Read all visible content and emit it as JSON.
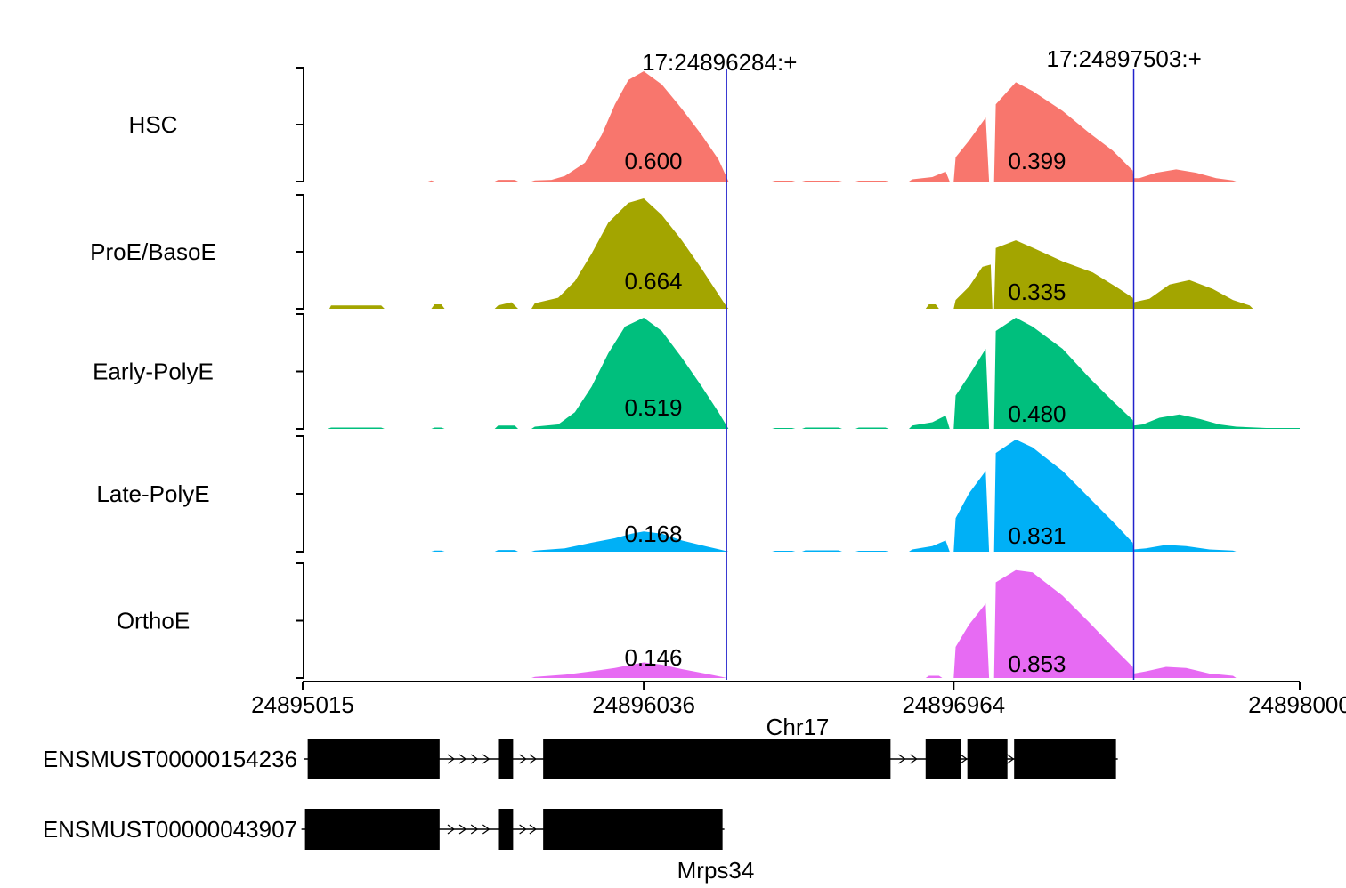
{
  "chart_data": {
    "type": "area",
    "chromosome_label": "Chr17",
    "x_range": [
      24895015,
      24898000
    ],
    "x_ticks": [
      "24895015",
      "24896036",
      "24896964",
      "24898000"
    ],
    "sites": [
      {
        "label": "17:24896284:+",
        "pos": 24896284
      },
      {
        "label": "17:24897503:+",
        "pos": 24897503
      }
    ],
    "series": [
      {
        "name": "HSC",
        "color": "#F8766D",
        "psi": [
          "0.600",
          "0.399"
        ],
        "profile": [
          [
            24895015,
            0
          ],
          [
            24895390,
            0
          ],
          [
            24895400,
            0.01
          ],
          [
            24895410,
            0
          ],
          [
            24895590,
            0
          ],
          [
            24895600,
            0.015
          ],
          [
            24895650,
            0.015
          ],
          [
            24895660,
            0
          ],
          [
            24895700,
            0
          ],
          [
            24895710,
            0.01
          ],
          [
            24895760,
            0.015
          ],
          [
            24895800,
            0.05
          ],
          [
            24895860,
            0.17
          ],
          [
            24895910,
            0.42
          ],
          [
            24895950,
            0.7
          ],
          [
            24895990,
            0.92
          ],
          [
            24896036,
            1.0
          ],
          [
            24896090,
            0.88
          ],
          [
            24896150,
            0.66
          ],
          [
            24896210,
            0.42
          ],
          [
            24896260,
            0.2
          ],
          [
            24896284,
            0.04
          ],
          [
            24896290,
            0
          ],
          [
            24896420,
            0
          ],
          [
            24896430,
            0.008
          ],
          [
            24896480,
            0.008
          ],
          [
            24896490,
            0
          ],
          [
            24896510,
            0
          ],
          [
            24896520,
            0.008
          ],
          [
            24896620,
            0.008
          ],
          [
            24896630,
            0
          ],
          [
            24896670,
            0
          ],
          [
            24896680,
            0.008
          ],
          [
            24896760,
            0.008
          ],
          [
            24896770,
            0
          ],
          [
            24896830,
            0
          ],
          [
            24896840,
            0.02
          ],
          [
            24896900,
            0.04
          ],
          [
            24896940,
            0.09
          ],
          [
            24896952,
            0
          ],
          [
            24896964,
            0
          ],
          [
            24896970,
            0.22
          ],
          [
            24897010,
            0.37
          ],
          [
            24897060,
            0.58
          ],
          [
            24897070,
            0
          ],
          [
            24897085,
            0
          ],
          [
            24897090,
            0.7
          ],
          [
            24897150,
            0.9
          ],
          [
            24897200,
            0.82
          ],
          [
            24897290,
            0.64
          ],
          [
            24897370,
            0.44
          ],
          [
            24897440,
            0.28
          ],
          [
            24897500,
            0.1
          ],
          [
            24897503,
            0.03
          ],
          [
            24897520,
            0.03
          ],
          [
            24897570,
            0.08
          ],
          [
            24897630,
            0.11
          ],
          [
            24897690,
            0.08
          ],
          [
            24897750,
            0.03
          ],
          [
            24897800,
            0.01
          ],
          [
            24897810,
            0
          ],
          [
            24898000,
            0
          ]
        ]
      },
      {
        "name": "ProE/BasoE",
        "color": "#A3A500",
        "psi": [
          "0.664",
          "0.335"
        ],
        "profile": [
          [
            24895015,
            0
          ],
          [
            24895095,
            0
          ],
          [
            24895100,
            0.03
          ],
          [
            24895250,
            0.03
          ],
          [
            24895260,
            0
          ],
          [
            24895400,
            0
          ],
          [
            24895410,
            0.04
          ],
          [
            24895430,
            0.04
          ],
          [
            24895440,
            0
          ],
          [
            24895590,
            0
          ],
          [
            24895600,
            0.03
          ],
          [
            24895640,
            0.06
          ],
          [
            24895660,
            0
          ],
          [
            24895700,
            0
          ],
          [
            24895710,
            0.05
          ],
          [
            24895780,
            0.1
          ],
          [
            24895830,
            0.25
          ],
          [
            24895880,
            0.5
          ],
          [
            24895930,
            0.78
          ],
          [
            24895990,
            0.96
          ],
          [
            24896036,
            1.0
          ],
          [
            24896090,
            0.85
          ],
          [
            24896150,
            0.62
          ],
          [
            24896210,
            0.36
          ],
          [
            24896260,
            0.13
          ],
          [
            24896284,
            0.02
          ],
          [
            24896290,
            0
          ],
          [
            24896880,
            0
          ],
          [
            24896890,
            0.04
          ],
          [
            24896910,
            0.04
          ],
          [
            24896920,
            0
          ],
          [
            24896964,
            0
          ],
          [
            24896970,
            0.08
          ],
          [
            24897010,
            0.2
          ],
          [
            24897050,
            0.38
          ],
          [
            24897075,
            0.4
          ],
          [
            24897080,
            0
          ],
          [
            24897085,
            0
          ],
          [
            24897090,
            0.55
          ],
          [
            24897150,
            0.62
          ],
          [
            24897210,
            0.54
          ],
          [
            24897290,
            0.43
          ],
          [
            24897380,
            0.33
          ],
          [
            24897450,
            0.2
          ],
          [
            24897500,
            0.1
          ],
          [
            24897503,
            0.06
          ],
          [
            24897550,
            0.09
          ],
          [
            24897610,
            0.22
          ],
          [
            24897670,
            0.26
          ],
          [
            24897740,
            0.18
          ],
          [
            24897800,
            0.08
          ],
          [
            24897850,
            0.03
          ],
          [
            24897860,
            0
          ],
          [
            24898000,
            0
          ]
        ]
      },
      {
        "name": "Early-PolyE",
        "color": "#00BF7D",
        "psi": [
          "0.519",
          "0.480"
        ],
        "profile": [
          [
            24895015,
            0
          ],
          [
            24895090,
            0
          ],
          [
            24895100,
            0.012
          ],
          [
            24895250,
            0.012
          ],
          [
            24895260,
            0
          ],
          [
            24895400,
            0
          ],
          [
            24895410,
            0.012
          ],
          [
            24895430,
            0.012
          ],
          [
            24895440,
            0
          ],
          [
            24895590,
            0
          ],
          [
            24895600,
            0.03
          ],
          [
            24895650,
            0.03
          ],
          [
            24895660,
            0
          ],
          [
            24895700,
            0
          ],
          [
            24895710,
            0.02
          ],
          [
            24895780,
            0.04
          ],
          [
            24895830,
            0.15
          ],
          [
            24895880,
            0.38
          ],
          [
            24895930,
            0.68
          ],
          [
            24895980,
            0.92
          ],
          [
            24896036,
            1.0
          ],
          [
            24896090,
            0.88
          ],
          [
            24896150,
            0.64
          ],
          [
            24896210,
            0.38
          ],
          [
            24896260,
            0.15
          ],
          [
            24896284,
            0.03
          ],
          [
            24896290,
            0
          ],
          [
            24896420,
            0
          ],
          [
            24896430,
            0.008
          ],
          [
            24896480,
            0.008
          ],
          [
            24896490,
            0
          ],
          [
            24896510,
            0
          ],
          [
            24896520,
            0.012
          ],
          [
            24896620,
            0.012
          ],
          [
            24896630,
            0
          ],
          [
            24896670,
            0
          ],
          [
            24896680,
            0.012
          ],
          [
            24896760,
            0.012
          ],
          [
            24896770,
            0
          ],
          [
            24896830,
            0
          ],
          [
            24896840,
            0.03
          ],
          [
            24896900,
            0.06
          ],
          [
            24896940,
            0.12
          ],
          [
            24896952,
            0
          ],
          [
            24896964,
            0
          ],
          [
            24896970,
            0.3
          ],
          [
            24897010,
            0.48
          ],
          [
            24897060,
            0.72
          ],
          [
            24897070,
            0
          ],
          [
            24897085,
            0
          ],
          [
            24897090,
            0.88
          ],
          [
            24897150,
            1.0
          ],
          [
            24897200,
            0.92
          ],
          [
            24897290,
            0.72
          ],
          [
            24897370,
            0.46
          ],
          [
            24897440,
            0.25
          ],
          [
            24897500,
            0.08
          ],
          [
            24897503,
            0.03
          ],
          [
            24897530,
            0.04
          ],
          [
            24897580,
            0.1
          ],
          [
            24897640,
            0.13
          ],
          [
            24897700,
            0.09
          ],
          [
            24897760,
            0.04
          ],
          [
            24897810,
            0.02
          ],
          [
            24897900,
            0.008
          ],
          [
            24898000,
            0.008
          ]
        ]
      },
      {
        "name": "Late-PolyE",
        "color": "#00B0F6",
        "psi": [
          "0.168",
          "0.831"
        ],
        "profile": [
          [
            24895015,
            0
          ],
          [
            24895400,
            0
          ],
          [
            24895410,
            0.01
          ],
          [
            24895430,
            0.01
          ],
          [
            24895440,
            0
          ],
          [
            24895590,
            0
          ],
          [
            24895600,
            0.015
          ],
          [
            24895650,
            0.015
          ],
          [
            24895660,
            0
          ],
          [
            24895700,
            0
          ],
          [
            24895710,
            0.01
          ],
          [
            24895800,
            0.03
          ],
          [
            24895880,
            0.08
          ],
          [
            24895950,
            0.12
          ],
          [
            24896000,
            0.16
          ],
          [
            24896036,
            0.18
          ],
          [
            24896090,
            0.16
          ],
          [
            24896150,
            0.1
          ],
          [
            24896220,
            0.05
          ],
          [
            24896270,
            0.015
          ],
          [
            24896284,
            0.005
          ],
          [
            24896290,
            0
          ],
          [
            24896420,
            0
          ],
          [
            24896430,
            0.008
          ],
          [
            24896480,
            0.008
          ],
          [
            24896490,
            0
          ],
          [
            24896510,
            0
          ],
          [
            24896520,
            0.012
          ],
          [
            24896620,
            0.012
          ],
          [
            24896630,
            0
          ],
          [
            24896670,
            0
          ],
          [
            24896680,
            0.008
          ],
          [
            24896760,
            0.008
          ],
          [
            24896770,
            0
          ],
          [
            24896830,
            0
          ],
          [
            24896840,
            0.02
          ],
          [
            24896900,
            0.05
          ],
          [
            24896940,
            0.1
          ],
          [
            24896952,
            0
          ],
          [
            24896964,
            0
          ],
          [
            24896970,
            0.3
          ],
          [
            24897010,
            0.52
          ],
          [
            24897060,
            0.72
          ],
          [
            24897070,
            0
          ],
          [
            24897085,
            0
          ],
          [
            24897090,
            0.88
          ],
          [
            24897150,
            1.0
          ],
          [
            24897200,
            0.93
          ],
          [
            24897290,
            0.72
          ],
          [
            24897370,
            0.48
          ],
          [
            24897440,
            0.27
          ],
          [
            24897500,
            0.08
          ],
          [
            24897503,
            0.02
          ],
          [
            24897540,
            0.03
          ],
          [
            24897600,
            0.06
          ],
          [
            24897660,
            0.05
          ],
          [
            24897730,
            0.02
          ],
          [
            24897800,
            0.01
          ],
          [
            24897810,
            0
          ],
          [
            24898000,
            0
          ]
        ]
      },
      {
        "name": "OrthoE",
        "color": "#E76BF3",
        "psi": [
          "0.146",
          "0.853"
        ],
        "profile": [
          [
            24895015,
            0
          ],
          [
            24895700,
            0
          ],
          [
            24895710,
            0.01
          ],
          [
            24895800,
            0.03
          ],
          [
            24895880,
            0.06
          ],
          [
            24895950,
            0.09
          ],
          [
            24896000,
            0.12
          ],
          [
            24896036,
            0.14
          ],
          [
            24896090,
            0.12
          ],
          [
            24896150,
            0.08
          ],
          [
            24896220,
            0.04
          ],
          [
            24896270,
            0.01
          ],
          [
            24896284,
            0
          ],
          [
            24896880,
            0
          ],
          [
            24896890,
            0.02
          ],
          [
            24896920,
            0.02
          ],
          [
            24896930,
            0
          ],
          [
            24896964,
            0
          ],
          [
            24896970,
            0.28
          ],
          [
            24897010,
            0.48
          ],
          [
            24897060,
            0.67
          ],
          [
            24897070,
            0
          ],
          [
            24897085,
            0
          ],
          [
            24897090,
            0.86
          ],
          [
            24897150,
            0.97
          ],
          [
            24897200,
            0.95
          ],
          [
            24897290,
            0.74
          ],
          [
            24897370,
            0.5
          ],
          [
            24897440,
            0.28
          ],
          [
            24897500,
            0.1
          ],
          [
            24897503,
            0.04
          ],
          [
            24897540,
            0.06
          ],
          [
            24897600,
            0.1
          ],
          [
            24897660,
            0.09
          ],
          [
            24897730,
            0.04
          ],
          [
            24897800,
            0.02
          ],
          [
            24897810,
            0
          ],
          [
            24898000,
            0
          ]
        ]
      }
    ],
    "transcripts": [
      {
        "id": "ENSMUST00000154236",
        "exons": [
          [
            24895030,
            24895425
          ],
          [
            24895600,
            24895645
          ],
          [
            24895735,
            24896775
          ],
          [
            24896880,
            24896985
          ],
          [
            24897005,
            24897125
          ],
          [
            24897145,
            24897450
          ]
        ]
      },
      {
        "id": "ENSMUST00000043907",
        "exons": [
          [
            24895022,
            24895425
          ],
          [
            24895600,
            24895645
          ],
          [
            24895735,
            24896272
          ]
        ]
      }
    ],
    "gene_label": "Mrps34",
    "grid": false,
    "legend": "none"
  }
}
